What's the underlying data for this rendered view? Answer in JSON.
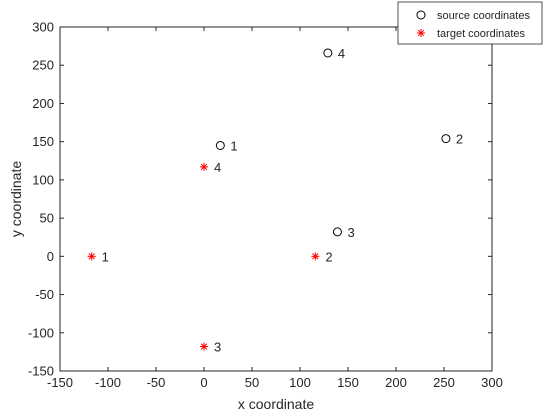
{
  "chart_data": {
    "type": "scatter",
    "title": "",
    "xlabel": "x coordinate",
    "ylabel": "y coordinate",
    "xlim": [
      -150,
      300
    ],
    "ylim": [
      -150,
      300
    ],
    "xticks": [
      -150,
      -100,
      -50,
      0,
      50,
      100,
      150,
      200,
      250,
      300
    ],
    "yticks": [
      -150,
      -100,
      -50,
      0,
      50,
      100,
      150,
      200,
      250,
      300
    ],
    "grid": false,
    "legend": {
      "placement": "top-right"
    },
    "series": [
      {
        "name": "source coordinates",
        "marker": "circle",
        "color": "#000000",
        "points": [
          {
            "x": 17,
            "y": 145,
            "label": "1"
          },
          {
            "x": 252,
            "y": 154,
            "label": "2"
          },
          {
            "x": 139,
            "y": 32,
            "label": "3"
          },
          {
            "x": 129,
            "y": 266,
            "label": "4"
          }
        ]
      },
      {
        "name": "target coordinates",
        "marker": "asterisk",
        "color": "#ff0000",
        "points": [
          {
            "x": -117,
            "y": 0,
            "label": "1"
          },
          {
            "x": 116,
            "y": 0,
            "label": "2"
          },
          {
            "x": 0,
            "y": -118,
            "label": "3"
          },
          {
            "x": 0,
            "y": 117,
            "label": "4"
          }
        ]
      }
    ]
  }
}
